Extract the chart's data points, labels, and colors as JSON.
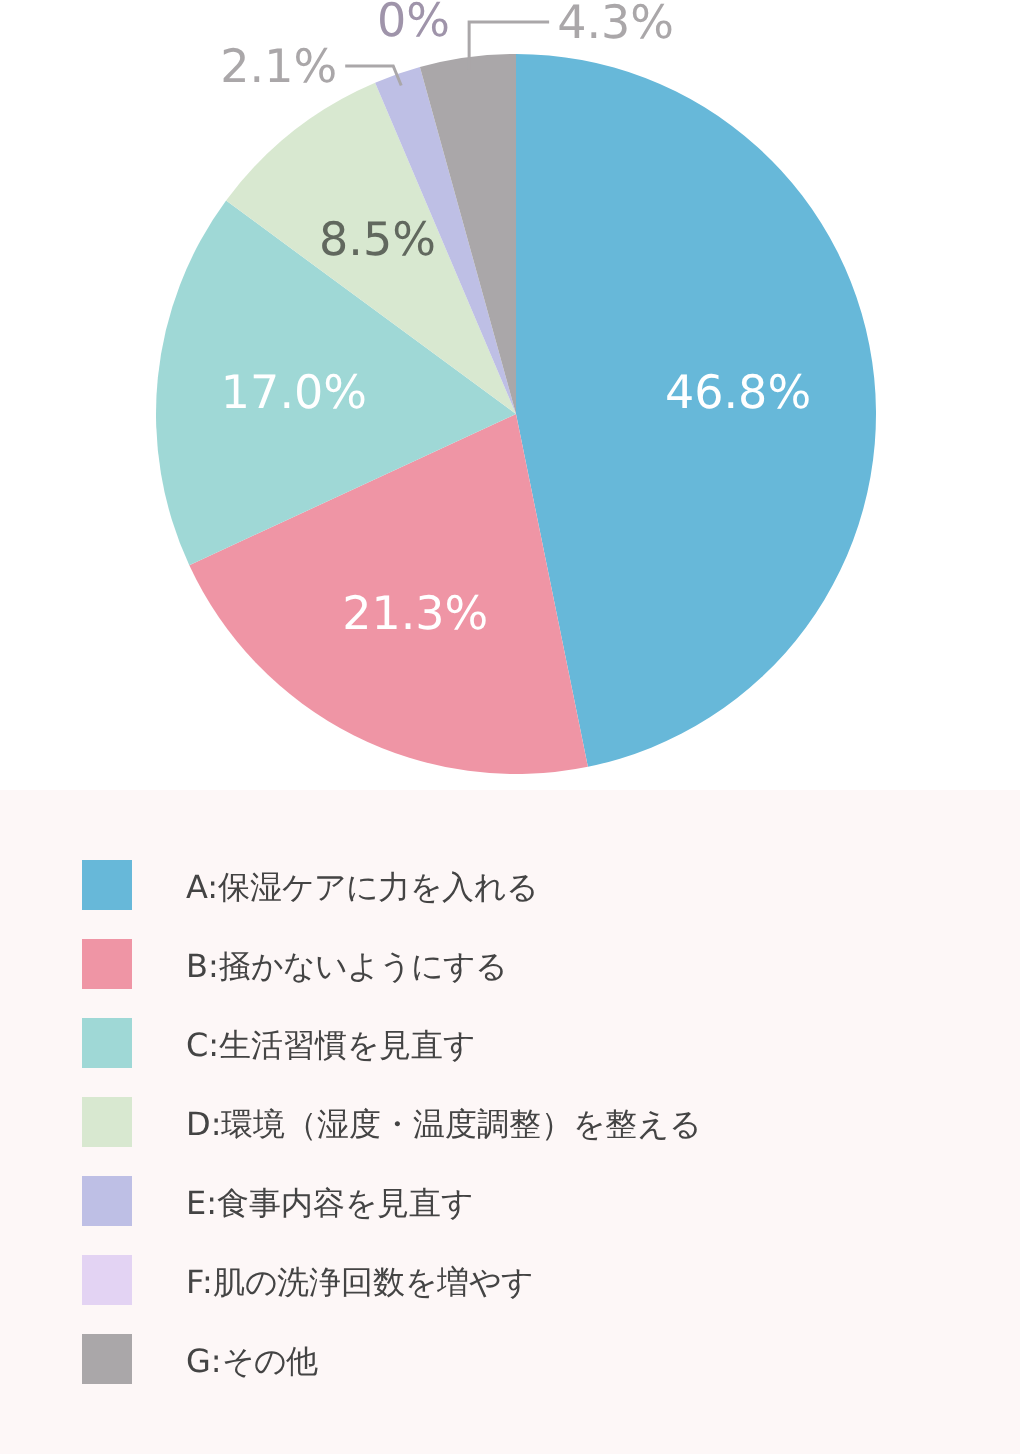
{
  "chart_data": {
    "type": "pie",
    "categories": [
      "A:保湿ケアに力を入れる",
      "B:掻かないようにする",
      "C:生活習慣を見直す",
      "D:環境（湿度・温度調整）を整える",
      "E:食事内容を見直す",
      "F:肌の洗浄回数を増やす",
      "G:その他"
    ],
    "values": [
      46.8,
      21.3,
      17.0,
      8.5,
      2.1,
      0,
      4.3
    ],
    "value_labels": [
      "46.8%",
      "21.3%",
      "17.0%",
      "8.5%",
      "2.1%",
      "0%",
      "4.3%"
    ],
    "colors": [
      "#67b8d9",
      "#ef95a5",
      "#9fd8d6",
      "#d8e8d0",
      "#bebfe5",
      "#e3d3f3",
      "#aaa7a9"
    ],
    "legend": "bottom"
  }
}
